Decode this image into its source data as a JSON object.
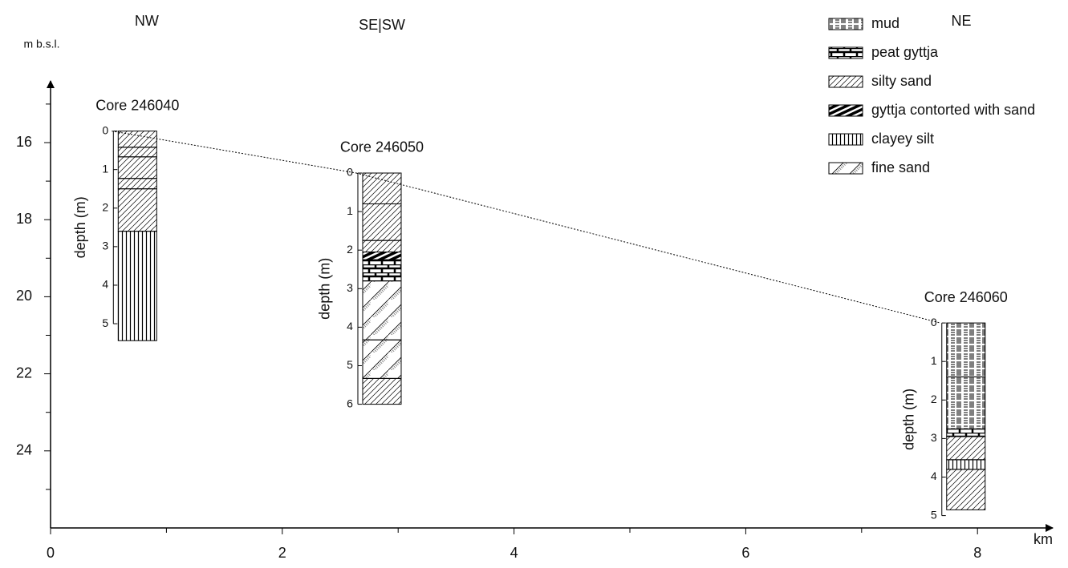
{
  "directions": [
    {
      "label": "NW",
      "km": 0.83
    },
    {
      "label": "SE|SW",
      "km": 2.86
    },
    {
      "label": "NE",
      "km": 7.86
    }
  ],
  "axes": {
    "y_label": "m b.s.l.",
    "x_label": "km",
    "xlim": [
      0,
      8.65
    ],
    "xticks": [
      0,
      2,
      4,
      6,
      8
    ],
    "xminor": [
      1,
      3,
      5,
      7
    ],
    "ylim": [
      26,
      14.4
    ],
    "yticks": [
      16,
      18,
      20,
      22,
      24
    ],
    "yminor": [
      15,
      17,
      19,
      21,
      23,
      25
    ]
  },
  "depth_label": "depth (m)",
  "legend": [
    "mud",
    "peat gyttja",
    "silty sand",
    "gyttja contorted with sand",
    "clayey silt",
    "fine sand"
  ],
  "cores": [
    {
      "name": "Core 246040",
      "km": 0.75,
      "top": 15.7,
      "depth_ticks": [
        0,
        1,
        2,
        3,
        4,
        5
      ],
      "layers": [
        {
          "lithology": "silty sand",
          "top": 0,
          "bottom": 0.42
        },
        {
          "lithology": "silty sand",
          "top": 0.42,
          "bottom": 0.67
        },
        {
          "lithology": "silty sand",
          "top": 0.67,
          "bottom": 1.23
        },
        {
          "lithology": "silty sand",
          "top": 1.23,
          "bottom": 1.5
        },
        {
          "lithology": "silty sand",
          "top": 1.5,
          "bottom": 2.6
        },
        {
          "lithology": "clayey silt",
          "top": 2.6,
          "bottom": 5.44
        }
      ]
    },
    {
      "name": "Core 246050",
      "km": 2.86,
      "top": 16.79,
      "depth_ticks": [
        0,
        1,
        2,
        3,
        4,
        5,
        6
      ],
      "layers": [
        {
          "lithology": "silty sand",
          "top": 0,
          "bottom": 0.8
        },
        {
          "lithology": "silty sand",
          "top": 0.8,
          "bottom": 1.75
        },
        {
          "lithology": "silty sand",
          "top": 1.75,
          "bottom": 2.05
        },
        {
          "lithology": "gyttja contorted with sand",
          "top": 2.05,
          "bottom": 2.25
        },
        {
          "lithology": "peat gyttja",
          "top": 2.25,
          "bottom": 2.8
        },
        {
          "lithology": "fine sand",
          "top": 2.8,
          "bottom": 4.33
        },
        {
          "lithology": "fine sand",
          "top": 4.33,
          "bottom": 5.33
        },
        {
          "lithology": "silty sand",
          "top": 5.33,
          "bottom": 6.0
        }
      ]
    },
    {
      "name": "Core 246060",
      "km": 7.9,
      "top": 20.68,
      "depth_ticks": [
        0,
        1,
        2,
        3,
        4,
        5
      ],
      "layers": [
        {
          "lithology": "mud",
          "top": 0,
          "bottom": 1.4
        },
        {
          "lithology": "mud",
          "top": 1.4,
          "bottom": 2.75
        },
        {
          "lithology": "peat gyttja",
          "top": 2.75,
          "bottom": 2.95
        },
        {
          "lithology": "silty sand",
          "top": 2.95,
          "bottom": 3.55
        },
        {
          "lithology": "clayey silt",
          "top": 3.55,
          "bottom": 3.8
        },
        {
          "lithology": "silty sand",
          "top": 3.8,
          "bottom": 4.85
        }
      ]
    }
  ]
}
